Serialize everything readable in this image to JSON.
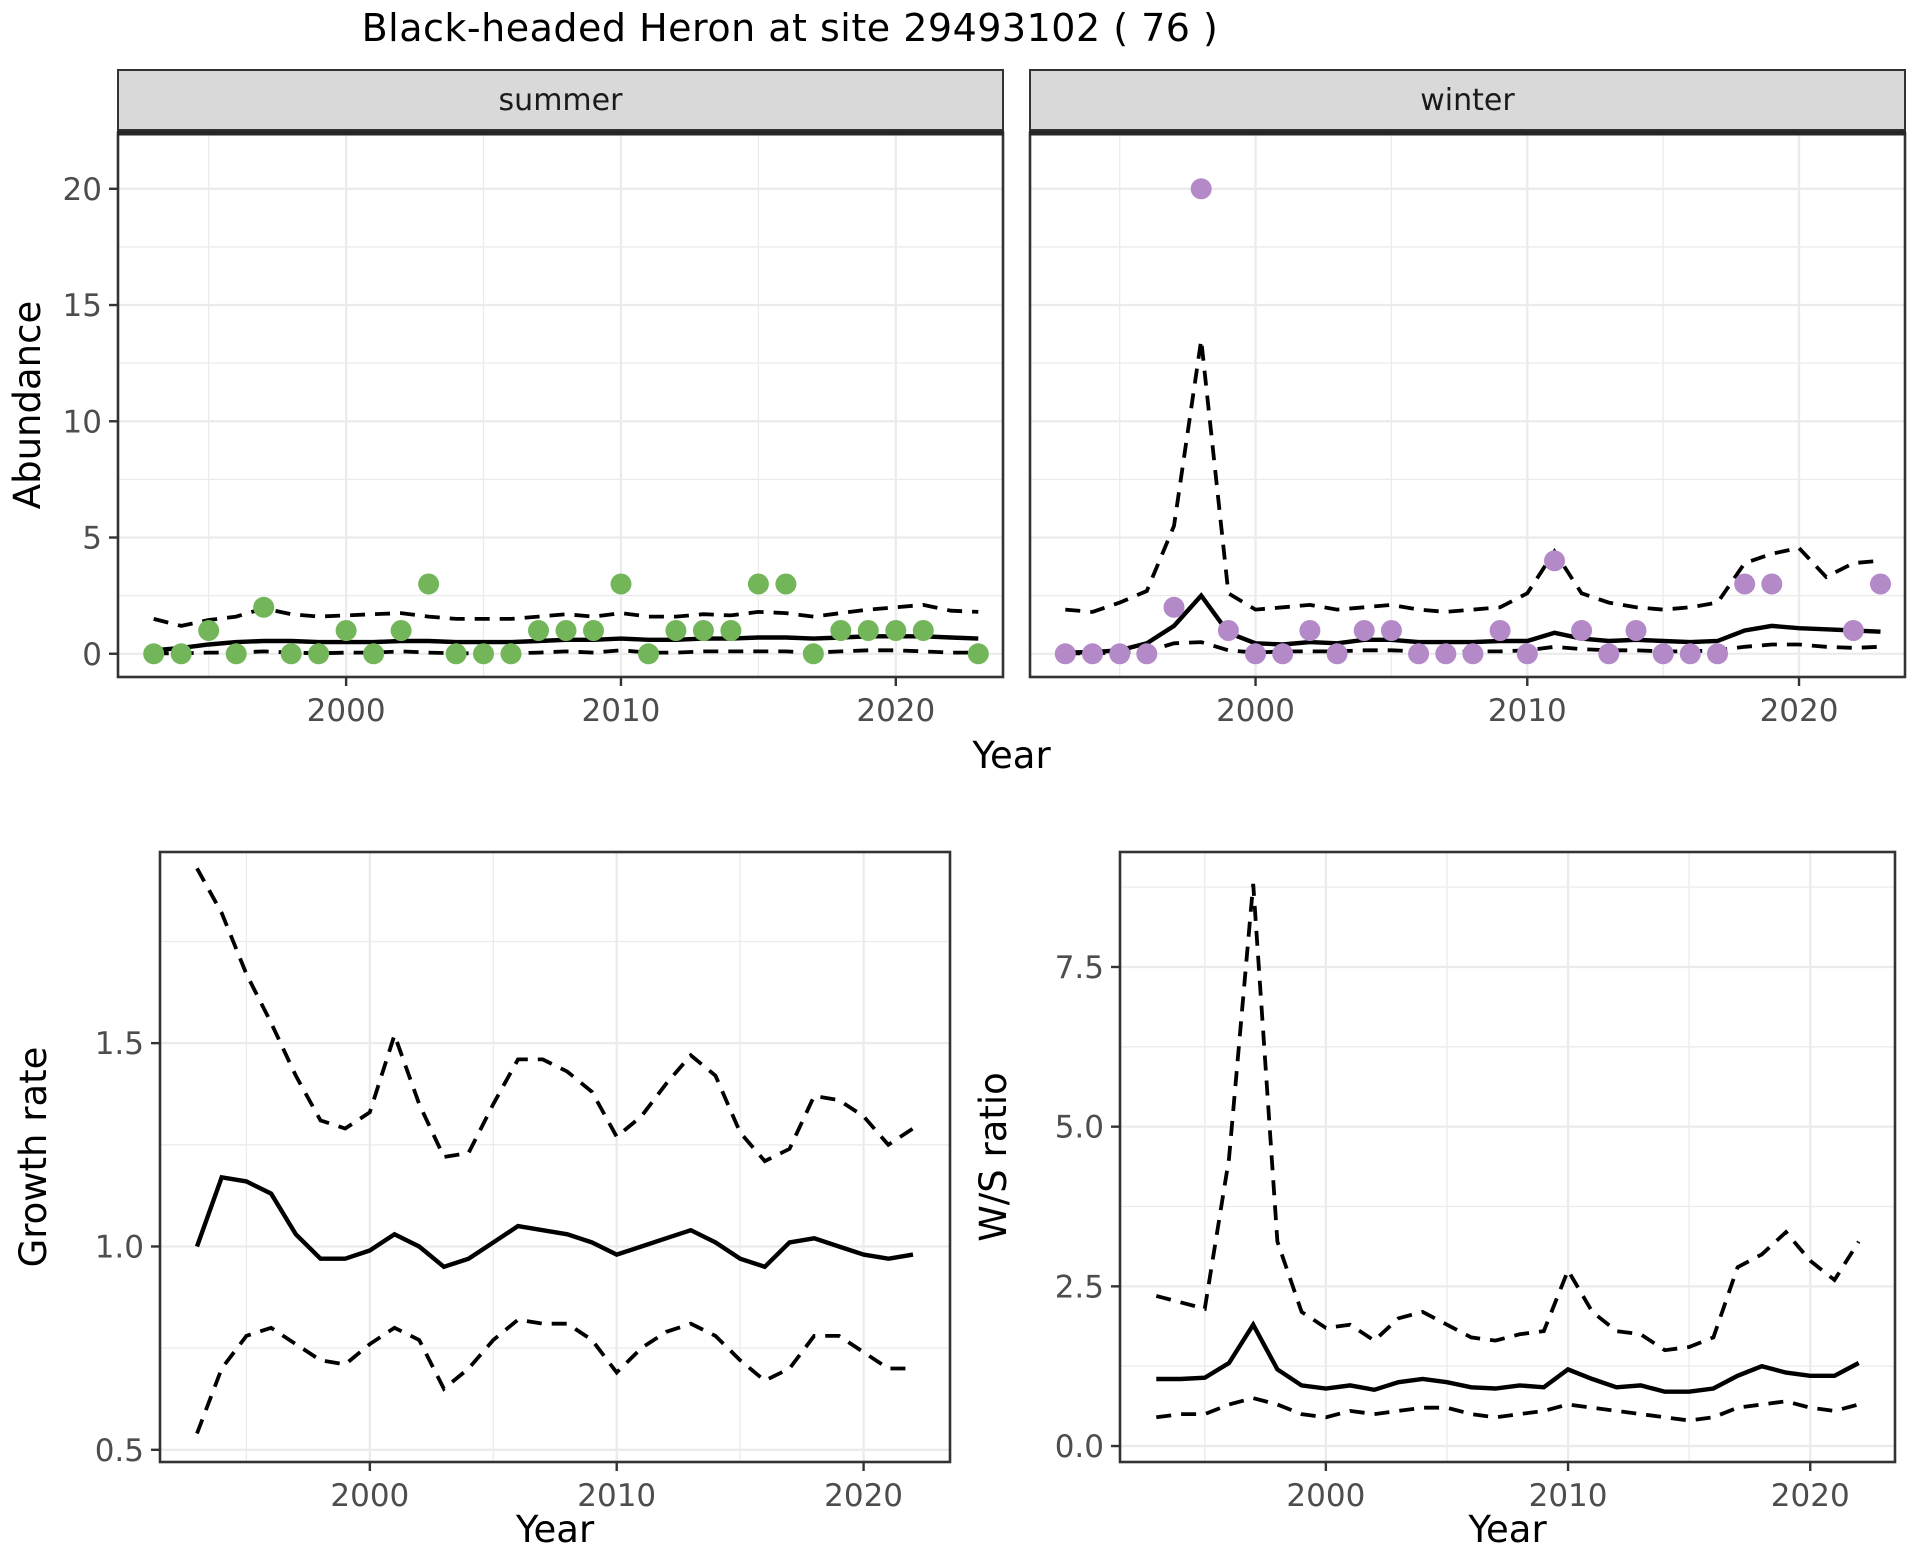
{
  "title": "Black-headed Heron at site 29493102 ( 76 )",
  "colors": {
    "summer_points": "#73b65a",
    "winter_points": "#b389c8",
    "fit_line": "#000000",
    "grid": "#ebebeb",
    "panel_border": "#333333",
    "strip_bg": "#d9d9d9",
    "strip_text": "#1a1a1a",
    "tick_label": "#4d4d4d",
    "axis_title": "#000000"
  },
  "chart_data": [
    {
      "id": "abundance-summer",
      "type": "scatter",
      "facet_label": "summer",
      "xlabel": "Year",
      "ylabel": "Abundance",
      "xlim": [
        1991.7,
        2023.9
      ],
      "ylim": [
        -1,
        22.4
      ],
      "xticks": [
        2000,
        2010,
        2020
      ],
      "xtick_labels": [
        "2000",
        "2010",
        "2020"
      ],
      "xminor": [
        1995,
        2005,
        2015
      ],
      "yticks": [
        0,
        5,
        10,
        15,
        20
      ],
      "ytick_labels": [
        "0",
        "5",
        "10",
        "15",
        "20"
      ],
      "yminor": [
        2.5,
        7.5,
        12.5,
        17.5
      ],
      "point_color": "#73b65a",
      "points": [
        [
          1993,
          0
        ],
        [
          1994,
          0
        ],
        [
          1995,
          1
        ],
        [
          1996,
          0
        ],
        [
          1997,
          2
        ],
        [
          1998,
          0
        ],
        [
          1999,
          0
        ],
        [
          2000,
          1
        ],
        [
          2001,
          0
        ],
        [
          2002,
          1
        ],
        [
          2003,
          3
        ],
        [
          2004,
          0
        ],
        [
          2005,
          0
        ],
        [
          2006,
          0
        ],
        [
          2007,
          1
        ],
        [
          2008,
          1
        ],
        [
          2009,
          1
        ],
        [
          2010,
          3
        ],
        [
          2011,
          0
        ],
        [
          2012,
          1
        ],
        [
          2013,
          1
        ],
        [
          2014,
          1
        ],
        [
          2015,
          3
        ],
        [
          2016,
          3
        ],
        [
          2017,
          0
        ],
        [
          2018,
          1
        ],
        [
          2019,
          1
        ],
        [
          2020,
          1
        ],
        [
          2021,
          1
        ],
        [
          2023,
          0
        ]
      ],
      "fit_start_year": 1993,
      "mean": [
        0.15,
        0.25,
        0.4,
        0.5,
        0.55,
        0.55,
        0.5,
        0.5,
        0.5,
        0.55,
        0.55,
        0.5,
        0.5,
        0.5,
        0.55,
        0.6,
        0.6,
        0.65,
        0.6,
        0.6,
        0.65,
        0.65,
        0.7,
        0.7,
        0.65,
        0.7,
        0.75,
        0.75,
        0.75,
        0.7,
        0.65
      ],
      "upper": [
        1.5,
        1.2,
        1.45,
        1.6,
        1.95,
        1.7,
        1.6,
        1.65,
        1.7,
        1.75,
        1.6,
        1.5,
        1.5,
        1.5,
        1.6,
        1.7,
        1.6,
        1.75,
        1.6,
        1.6,
        1.7,
        1.65,
        1.8,
        1.75,
        1.6,
        1.75,
        1.9,
        2.0,
        2.1,
        1.85,
        1.8
      ],
      "lower": [
        0.02,
        0.02,
        0.05,
        0.05,
        0.1,
        0.05,
        0.02,
        0.05,
        0.05,
        0.1,
        0.05,
        0.02,
        0.02,
        0.02,
        0.05,
        0.1,
        0.05,
        0.15,
        0.05,
        0.05,
        0.1,
        0.1,
        0.1,
        0.1,
        0.05,
        0.1,
        0.15,
        0.15,
        0.1,
        0.05,
        0.05
      ]
    },
    {
      "id": "abundance-winter",
      "type": "scatter",
      "facet_label": "winter",
      "xlabel": "Year",
      "ylabel": "Abundance",
      "xlim": [
        1991.7,
        2023.9
      ],
      "ylim": [
        -1,
        22.4
      ],
      "xticks": [
        2000,
        2010,
        2020
      ],
      "xtick_labels": [
        "2000",
        "2010",
        "2020"
      ],
      "xminor": [
        1995,
        2005,
        2015
      ],
      "yticks": [
        0,
        5,
        10,
        15,
        20
      ],
      "ytick_labels": [
        "0",
        "5",
        "10",
        "15",
        "20"
      ],
      "yminor": [
        2.5,
        7.5,
        12.5,
        17.5
      ],
      "point_color": "#b389c8",
      "points": [
        [
          1993,
          0
        ],
        [
          1994,
          0
        ],
        [
          1995,
          0
        ],
        [
          1996,
          0
        ],
        [
          1997,
          2
        ],
        [
          1998,
          20
        ],
        [
          1999,
          1
        ],
        [
          2000,
          0
        ],
        [
          2001,
          0
        ],
        [
          2002,
          1
        ],
        [
          2003,
          0
        ],
        [
          2004,
          1
        ],
        [
          2005,
          1
        ],
        [
          2006,
          0
        ],
        [
          2007,
          0
        ],
        [
          2008,
          0
        ],
        [
          2009,
          1
        ],
        [
          2010,
          0
        ],
        [
          2011,
          4
        ],
        [
          2012,
          1
        ],
        [
          2013,
          0
        ],
        [
          2014,
          1
        ],
        [
          2015,
          0
        ],
        [
          2016,
          0
        ],
        [
          2017,
          0
        ],
        [
          2018,
          3
        ],
        [
          2019,
          3
        ],
        [
          2022,
          1
        ],
        [
          2023,
          3
        ]
      ],
      "fit_start_year": 1993,
      "mean": [
        0.05,
        0.07,
        0.15,
        0.45,
        1.2,
        2.5,
        0.9,
        0.45,
        0.4,
        0.5,
        0.45,
        0.6,
        0.6,
        0.5,
        0.5,
        0.5,
        0.55,
        0.55,
        0.9,
        0.65,
        0.55,
        0.6,
        0.55,
        0.5,
        0.55,
        1.0,
        1.2,
        1.1,
        1.05,
        1.0,
        0.95
      ],
      "upper": [
        1.9,
        1.8,
        2.2,
        2.7,
        5.5,
        13.5,
        2.6,
        1.9,
        2.0,
        2.1,
        1.9,
        2.0,
        2.1,
        1.9,
        1.8,
        1.9,
        2.0,
        2.6,
        4.4,
        2.6,
        2.2,
        2.0,
        1.9,
        2.0,
        2.2,
        3.9,
        4.3,
        4.55,
        3.3,
        3.9,
        4.0
      ],
      "lower": [
        0.02,
        0.02,
        0.05,
        0.1,
        0.45,
        0.5,
        0.15,
        0.05,
        0.1,
        0.1,
        0.1,
        0.15,
        0.15,
        0.1,
        0.05,
        0.1,
        0.1,
        0.15,
        0.3,
        0.2,
        0.15,
        0.15,
        0.1,
        0.1,
        0.15,
        0.3,
        0.4,
        0.4,
        0.3,
        0.25,
        0.3
      ]
    },
    {
      "id": "growth-rate",
      "type": "line",
      "facet_label": null,
      "xlabel": "Year",
      "ylabel": "Growth rate",
      "xlim": [
        1991.5,
        2023.5
      ],
      "ylim": [
        0.47,
        1.97
      ],
      "xticks": [
        2000,
        2010,
        2020
      ],
      "xtick_labels": [
        "2000",
        "2010",
        "2020"
      ],
      "xminor": [
        1995,
        2005,
        2015
      ],
      "yticks": [
        0.5,
        1.0,
        1.5
      ],
      "ytick_labels": [
        "0.5",
        "1.0",
        "1.5"
      ],
      "yminor": [
        0.75,
        1.25,
        1.75
      ],
      "fit_start_year": 1993,
      "mean": [
        1.0,
        1.17,
        1.16,
        1.13,
        1.03,
        0.97,
        0.97,
        0.99,
        1.03,
        1.0,
        0.95,
        0.97,
        1.01,
        1.05,
        1.04,
        1.03,
        1.01,
        0.98,
        1.0,
        1.02,
        1.04,
        1.01,
        0.97,
        0.95,
        1.01,
        1.02,
        1.0,
        0.98,
        0.97,
        0.98
      ],
      "upper": [
        1.93,
        1.82,
        1.67,
        1.55,
        1.42,
        1.31,
        1.29,
        1.33,
        1.52,
        1.35,
        1.22,
        1.23,
        1.35,
        1.46,
        1.46,
        1.43,
        1.38,
        1.27,
        1.32,
        1.4,
        1.47,
        1.42,
        1.28,
        1.21,
        1.24,
        1.37,
        1.36,
        1.32,
        1.25,
        1.29
      ],
      "lower": [
        0.54,
        0.7,
        0.78,
        0.8,
        0.76,
        0.72,
        0.71,
        0.76,
        0.8,
        0.77,
        0.65,
        0.7,
        0.77,
        0.82,
        0.81,
        0.81,
        0.77,
        0.69,
        0.75,
        0.79,
        0.81,
        0.78,
        0.72,
        0.67,
        0.7,
        0.78,
        0.78,
        0.74,
        0.7,
        0.7
      ]
    },
    {
      "id": "ws-ratio",
      "type": "line",
      "facet_label": null,
      "xlabel": "Year",
      "ylabel": "W/S ratio",
      "xlim": [
        1991.5,
        2023.5
      ],
      "ylim": [
        -0.25,
        9.3
      ],
      "xticks": [
        2000,
        2010,
        2020
      ],
      "xtick_labels": [
        "2000",
        "2010",
        "2020"
      ],
      "xminor": [
        1995,
        2005,
        2015
      ],
      "yticks": [
        0.0,
        2.5,
        5.0,
        7.5
      ],
      "ytick_labels": [
        "0.0",
        "2.5",
        "5.0",
        "7.5"
      ],
      "yminor": [
        1.25,
        3.75,
        6.25,
        8.75
      ],
      "fit_start_year": 1993,
      "mean": [
        1.05,
        1.05,
        1.07,
        1.3,
        1.9,
        1.2,
        0.95,
        0.9,
        0.95,
        0.88,
        1.0,
        1.05,
        1.0,
        0.92,
        0.9,
        0.95,
        0.92,
        1.2,
        1.05,
        0.92,
        0.95,
        0.85,
        0.85,
        0.9,
        1.1,
        1.25,
        1.15,
        1.1,
        1.1,
        1.3
      ],
      "upper": [
        2.35,
        2.25,
        2.15,
        4.5,
        8.8,
        3.2,
        2.1,
        1.85,
        1.9,
        1.65,
        2.0,
        2.1,
        1.9,
        1.7,
        1.65,
        1.75,
        1.8,
        2.75,
        2.1,
        1.8,
        1.75,
        1.5,
        1.55,
        1.7,
        2.8,
        3.0,
        3.35,
        2.9,
        2.6,
        3.2
      ],
      "lower": [
        0.45,
        0.5,
        0.5,
        0.65,
        0.75,
        0.65,
        0.5,
        0.45,
        0.55,
        0.5,
        0.55,
        0.6,
        0.6,
        0.5,
        0.45,
        0.5,
        0.55,
        0.65,
        0.6,
        0.55,
        0.5,
        0.45,
        0.4,
        0.45,
        0.6,
        0.65,
        0.7,
        0.6,
        0.55,
        0.65
      ]
    }
  ]
}
